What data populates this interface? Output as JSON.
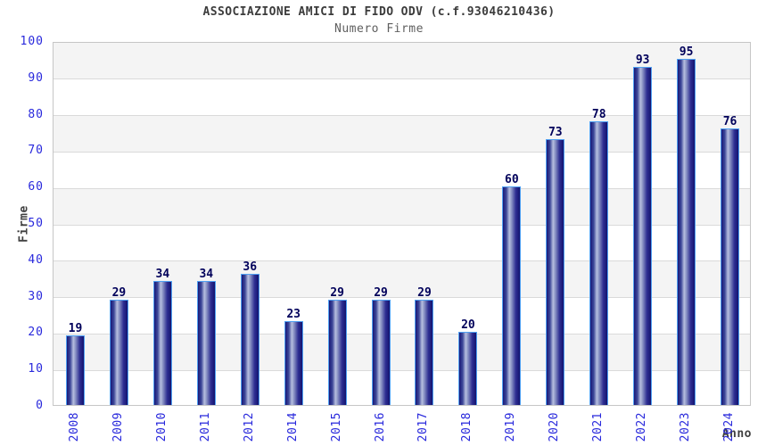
{
  "header": {
    "title": "ASSOCIAZIONE AMICI DI FIDO ODV (c.f.93046210436)",
    "subtitle": "Numero Firme"
  },
  "chart_data": {
    "type": "bar",
    "title": "ASSOCIAZIONE AMICI DI FIDO ODV (c.f.93046210436)",
    "subtitle": "Numero Firme",
    "xlabel": "Anno",
    "ylabel": "Firme",
    "categories": [
      "2008",
      "2009",
      "2010",
      "2011",
      "2012",
      "2014",
      "2015",
      "2016",
      "2017",
      "2018",
      "2019",
      "2020",
      "2021",
      "2022",
      "2023",
      "2024"
    ],
    "values": [
      19,
      29,
      34,
      34,
      36,
      23,
      29,
      29,
      29,
      20,
      60,
      73,
      78,
      93,
      95,
      76
    ],
    "ylim": [
      0,
      100
    ],
    "ytick_step": 10,
    "grid": true,
    "legend_position": "none",
    "colors": {
      "bar_dark": "#181878",
      "bar_light": "#b6bedf",
      "bar_border": "#4fa0f2",
      "tick_label": "#2828dc",
      "value_label": "#00005a",
      "band_gray": "#f4f4f4",
      "band_white": "#ffffff",
      "gridline": "#dadada",
      "axis_text": "#404040"
    }
  }
}
